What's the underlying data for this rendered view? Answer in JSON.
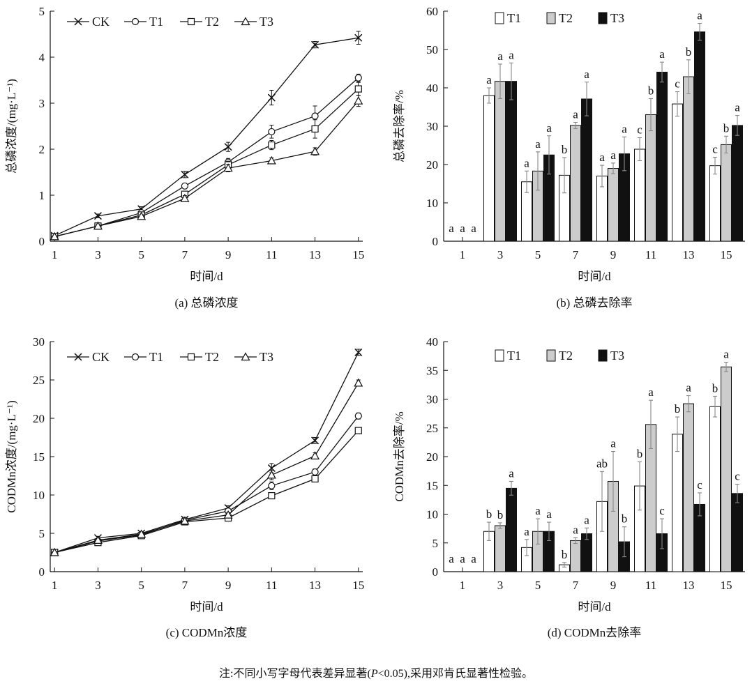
{
  "chart_data": [
    {
      "id": "a",
      "type": "line",
      "title": "(a) 总磷浓度",
      "xlabel": "时间/d",
      "ylabel": "总磷浓度/(mg·L⁻¹)",
      "x": [
        1,
        3,
        5,
        7,
        9,
        11,
        13,
        15
      ],
      "xlim": [
        0.8,
        15.2
      ],
      "ylim": [
        0,
        5
      ],
      "yticks": [
        0,
        1,
        2,
        3,
        4,
        5
      ],
      "legend": "top-left",
      "series": [
        {
          "name": "CK",
          "marker": "x",
          "values": [
            0.12,
            0.55,
            0.7,
            1.45,
            2.05,
            3.12,
            4.27,
            4.42
          ],
          "errors": [
            0.03,
            0.04,
            0.05,
            0.07,
            0.1,
            0.16,
            0.07,
            0.14
          ]
        },
        {
          "name": "T1",
          "marker": "circle",
          "values": [
            0.1,
            0.33,
            0.62,
            1.2,
            1.72,
            2.38,
            2.72,
            3.55
          ],
          "errors": [
            0.02,
            0.03,
            0.04,
            0.06,
            0.08,
            0.14,
            0.22,
            0.08
          ]
        },
        {
          "name": "T2",
          "marker": "square",
          "values": [
            0.1,
            0.33,
            0.57,
            1.02,
            1.66,
            2.09,
            2.44,
            3.31
          ],
          "errors": [
            0.02,
            0.03,
            0.04,
            0.06,
            0.08,
            0.1,
            0.2,
            0.14
          ]
        },
        {
          "name": "T3",
          "marker": "triangle",
          "values": [
            0.1,
            0.33,
            0.54,
            0.93,
            1.59,
            1.75,
            1.95,
            3.05
          ],
          "errors": [
            0.02,
            0.03,
            0.04,
            0.06,
            0.08,
            0.06,
            0.08,
            0.12
          ]
        }
      ]
    },
    {
      "id": "b",
      "type": "bar",
      "title": "(b) 总磷去除率",
      "xlabel": "时间/d",
      "ylabel": "总磷去除率/%",
      "categories": [
        "1",
        "3",
        "5",
        "7",
        "9",
        "11",
        "13",
        "15"
      ],
      "ylim": [
        0,
        60
      ],
      "yticks": [
        0,
        10,
        20,
        30,
        40,
        50,
        60
      ],
      "legend": "top",
      "series": [
        {
          "name": "T1",
          "color": "#ffffff",
          "values": [
            0,
            38.0,
            15.5,
            17.2,
            17.0,
            24.0,
            35.8,
            19.7
          ],
          "errors": [
            0,
            2.0,
            2.8,
            4.6,
            2.8,
            3.0,
            3.2,
            2.2
          ],
          "letters": [
            "a",
            "a",
            "a",
            "b",
            "a",
            "c",
            "c",
            "c"
          ]
        },
        {
          "name": "T2",
          "color": "#cccccc",
          "values": [
            0,
            41.7,
            18.3,
            30.2,
            19.0,
            33.0,
            42.9,
            25.2
          ],
          "errors": [
            0,
            4.5,
            5.0,
            0.8,
            1.4,
            4.2,
            4.4,
            2.2
          ],
          "letters": [
            "a",
            "a",
            "a",
            "a",
            "a",
            "b",
            "b",
            "b"
          ]
        },
        {
          "name": "T3",
          "color": "#111111",
          "values": [
            0,
            41.7,
            22.5,
            37.1,
            22.8,
            44.1,
            54.6,
            30.2
          ],
          "errors": [
            0,
            4.8,
            5.0,
            4.4,
            4.4,
            2.6,
            2.2,
            2.6
          ],
          "letters": [
            "a",
            "a",
            "a",
            "a",
            "a",
            "a",
            "a",
            "a"
          ]
        }
      ]
    },
    {
      "id": "c",
      "type": "line",
      "title": "(c) CODMn浓度",
      "xlabel": "时间/d",
      "ylabel": "CODMn浓度/(mg·L⁻¹)",
      "x": [
        1,
        3,
        5,
        7,
        9,
        11,
        13,
        15
      ],
      "xlim": [
        0.8,
        15.2
      ],
      "ylim": [
        0,
        30
      ],
      "yticks": [
        0,
        5,
        10,
        15,
        20,
        25,
        30
      ],
      "legend": "top-left",
      "series": [
        {
          "name": "CK",
          "marker": "x",
          "values": [
            2.5,
            4.4,
            5.0,
            6.8,
            8.3,
            13.5,
            17.1,
            28.6
          ],
          "errors": [
            0.15,
            0.2,
            0.2,
            0.25,
            0.3,
            0.6,
            0.4,
            0.4
          ]
        },
        {
          "name": "T1",
          "marker": "circle",
          "values": [
            2.5,
            4.0,
            4.8,
            6.7,
            7.9,
            11.2,
            13.0,
            20.3
          ],
          "errors": [
            0.15,
            0.2,
            0.2,
            0.25,
            0.3,
            0.5,
            0.4,
            0.4
          ]
        },
        {
          "name": "T2",
          "marker": "square",
          "values": [
            2.5,
            3.8,
            4.7,
            6.5,
            7.0,
            9.9,
            12.1,
            18.4
          ],
          "errors": [
            0.15,
            0.2,
            0.2,
            0.25,
            0.3,
            0.4,
            0.4,
            0.4
          ]
        },
        {
          "name": "T3",
          "marker": "triangle",
          "values": [
            2.5,
            4.1,
            4.9,
            6.6,
            7.4,
            12.6,
            15.1,
            24.6
          ],
          "errors": [
            0.15,
            0.2,
            0.2,
            0.25,
            0.3,
            0.6,
            0.4,
            0.4
          ]
        }
      ]
    },
    {
      "id": "d",
      "type": "bar",
      "title": "(d) CODMn去除率",
      "xlabel": "时间/d",
      "ylabel": "CODMn去除率/%",
      "categories": [
        "1",
        "3",
        "5",
        "7",
        "9",
        "11",
        "13",
        "15"
      ],
      "ylim": [
        0,
        40
      ],
      "yticks": [
        0,
        5,
        10,
        15,
        20,
        25,
        30,
        35,
        40
      ],
      "legend": "top",
      "series": [
        {
          "name": "T1",
          "color": "#ffffff",
          "values": [
            0,
            7.0,
            4.2,
            1.2,
            12.2,
            14.9,
            23.9,
            28.7
          ],
          "errors": [
            0,
            1.6,
            1.4,
            0.4,
            5.2,
            4.2,
            3.0,
            1.8
          ],
          "letters": [
            "a",
            "b",
            "a",
            "b",
            "ab",
            "b",
            "b",
            "b"
          ]
        },
        {
          "name": "T2",
          "color": "#cccccc",
          "values": [
            0,
            8.0,
            7.0,
            5.4,
            15.7,
            25.6,
            29.2,
            35.6
          ],
          "errors": [
            0,
            0.5,
            2.2,
            0.5,
            5.2,
            4.2,
            1.4,
            0.8
          ],
          "letters": [
            "a",
            "b",
            "a",
            "a",
            "a",
            "a",
            "a",
            "a"
          ]
        },
        {
          "name": "T3",
          "color": "#111111",
          "values": [
            0,
            14.5,
            7.0,
            6.6,
            5.2,
            6.6,
            11.7,
            13.6
          ],
          "errors": [
            0,
            1.2,
            1.6,
            1.0,
            2.6,
            2.6,
            2.0,
            1.6
          ],
          "letters": [
            "a",
            "a",
            "a",
            "a",
            "b",
            "c",
            "c",
            "c"
          ]
        }
      ]
    }
  ],
  "footnote": {
    "prefix": "注:不同小写字母代表差异显著(",
    "p_symbol": "P",
    "threshold": "<0.05)",
    "suffix": ",采用邓肯氏显著性检验。"
  }
}
